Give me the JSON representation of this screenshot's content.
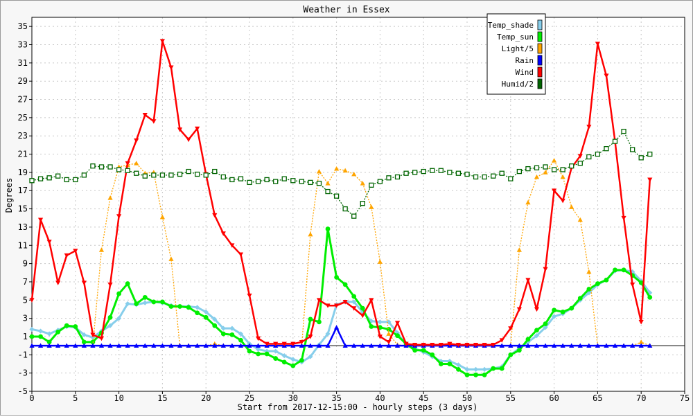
{
  "chart_data": {
    "type": "line",
    "title": "Weather in Essex",
    "xlabel": "Start from 2017-12-15:00 - hourly steps (3 days)",
    "ylabel": "Degrees",
    "xlim": [
      0,
      75
    ],
    "ylim": [
      -5,
      36
    ],
    "x_ticks": [
      "0",
      "5",
      "10",
      "15",
      "20",
      "25",
      "30",
      "35",
      "40",
      "45",
      "50",
      "55",
      "60",
      "65",
      "70",
      "75"
    ],
    "y_ticks": [
      "-5",
      "-3",
      "-1",
      "1",
      "3",
      "5",
      "7",
      "9",
      "11",
      "13",
      "15",
      "17",
      "19",
      "21",
      "23",
      "25",
      "27",
      "29",
      "31",
      "33",
      "35"
    ],
    "grid": true,
    "legend_position": "top-right",
    "x": [
      0,
      1,
      2,
      3,
      4,
      5,
      6,
      7,
      8,
      9,
      10,
      11,
      12,
      13,
      14,
      15,
      16,
      17,
      18,
      19,
      20,
      21,
      22,
      23,
      24,
      25,
      26,
      27,
      28,
      29,
      30,
      31,
      32,
      33,
      34,
      35,
      36,
      37,
      38,
      39,
      40,
      41,
      42,
      43,
      44,
      45,
      46,
      47,
      48,
      49,
      50,
      51,
      52,
      53,
      54,
      55,
      56,
      57,
      58,
      59,
      60,
      61,
      62,
      63,
      64,
      65,
      66,
      67,
      68,
      69,
      70,
      71
    ],
    "series": [
      {
        "name": "Temp_shade",
        "color": "#87ceeb",
        "marker": "diamond",
        "values": [
          1.8,
          1.6,
          1.3,
          1.7,
          2.1,
          2.0,
          1.2,
          0.9,
          1.6,
          2.2,
          3.0,
          4.6,
          4.5,
          4.7,
          4.8,
          4.7,
          4.4,
          4.3,
          4.3,
          4.2,
          3.7,
          2.9,
          1.9,
          1.9,
          1.3,
          0.2,
          -0.4,
          -0.6,
          -0.6,
          -1.1,
          -1.5,
          -1.8,
          -1.2,
          0.1,
          1.3,
          4.5,
          4.8,
          4.8,
          3.7,
          2.7,
          2.6,
          2.6,
          1.4,
          0.1,
          -0.3,
          -0.7,
          -1.2,
          -1.7,
          -1.7,
          -2.1,
          -2.6,
          -2.6,
          -2.6,
          -2.5,
          -2.3,
          -1.0,
          -0.3,
          0.4,
          1.1,
          2.0,
          3.2,
          3.5,
          4.1,
          5.0,
          5.8,
          6.7,
          7.2,
          8.2,
          8.3,
          8.1,
          7.1,
          5.8
        ]
      },
      {
        "name": "Temp_sun",
        "color": "#00ee00",
        "marker": "circle",
        "values": [
          1.0,
          1.0,
          0.4,
          1.5,
          2.2,
          2.1,
          0.4,
          0.4,
          1.4,
          3.1,
          5.7,
          6.8,
          4.6,
          5.3,
          4.8,
          4.8,
          4.3,
          4.3,
          4.2,
          3.6,
          3.1,
          2.2,
          1.3,
          1.2,
          0.6,
          -0.6,
          -0.9,
          -0.9,
          -1.4,
          -1.8,
          -2.2,
          -1.6,
          2.9,
          2.6,
          12.8,
          7.5,
          6.7,
          5.4,
          4.1,
          2.1,
          2.0,
          1.8,
          1.1,
          0.2,
          -0.5,
          -0.5,
          -1.0,
          -2.0,
          -2.0,
          -2.6,
          -3.2,
          -3.2,
          -3.2,
          -2.5,
          -2.5,
          -1.0,
          -0.5,
          0.7,
          1.7,
          2.4,
          3.9,
          3.7,
          4.1,
          5.2,
          6.2,
          6.8,
          7.2,
          8.3,
          8.3,
          7.7,
          6.9,
          5.3
        ]
      },
      {
        "name": "Light/5",
        "color": "#ffa500",
        "marker": "triangle-up",
        "values": [
          0,
          0,
          0,
          0,
          0,
          0,
          0,
          0,
          10.5,
          16.2,
          19.6,
          19.8,
          20.0,
          18.9,
          19.0,
          14.1,
          9.5,
          0,
          0,
          0,
          0,
          0.2,
          0,
          0,
          0,
          0,
          0,
          0,
          0,
          0,
          0,
          0,
          12.2,
          19.1,
          17.8,
          19.4,
          19.2,
          18.8,
          17.8,
          15.2,
          9.2,
          1.3,
          0.1,
          0,
          0,
          0,
          0,
          0,
          0,
          0,
          0,
          0,
          0,
          0,
          0,
          0,
          10.5,
          15.7,
          18.5,
          19.0,
          20.3,
          18.5,
          15.2,
          13.8,
          8.1,
          0,
          0,
          0,
          0,
          0,
          0.4,
          0
        ]
      },
      {
        "name": "Rain",
        "color": "#0000ff",
        "marker": "triangle-up",
        "values": [
          0,
          0,
          0,
          0,
          0,
          0,
          0,
          0,
          0,
          0,
          0,
          0,
          0,
          0,
          0,
          0,
          0,
          0,
          0,
          0,
          0,
          0,
          0,
          0,
          0,
          0,
          0,
          0,
          0,
          0,
          0,
          0,
          0,
          0,
          0,
          2.0,
          0,
          0,
          0,
          0,
          0,
          0,
          0,
          0,
          0,
          0,
          0,
          0,
          0,
          0,
          0,
          0,
          0,
          0,
          0,
          0,
          0,
          0,
          0,
          0,
          0,
          0,
          0,
          0,
          0,
          0,
          0,
          0,
          0,
          0,
          0,
          0
        ]
      },
      {
        "name": "Wind",
        "color": "#ff0000",
        "marker": "triangle-down",
        "values": [
          5.0,
          13.8,
          11.4,
          6.9,
          9.9,
          10.4,
          6.9,
          1.2,
          0.8,
          6.7,
          14.2,
          20.0,
          22.5,
          25.3,
          24.6,
          33.4,
          30.5,
          23.7,
          22.6,
          23.8,
          18.8,
          14.3,
          12.3,
          11.0,
          10.0,
          5.5,
          0.8,
          0.2,
          0.2,
          0.2,
          0.2,
          0.4,
          1.0,
          5.0,
          4.4,
          4.4,
          4.8,
          4.1,
          3.3,
          5.0,
          1.0,
          0.4,
          2.5,
          0.2,
          0.1,
          0.1,
          0.1,
          0.1,
          0.2,
          0.1,
          0.1,
          0.1,
          0.1,
          0.1,
          0.6,
          1.9,
          4.0,
          7.2,
          4.0,
          8.4,
          17.0,
          15.9,
          19.5,
          20.8,
          24.0,
          33.1,
          29.6,
          22.4,
          14.0,
          6.7,
          2.6,
          18.2
        ]
      },
      {
        "name": "Humid/2",
        "color": "#006400",
        "marker": "square",
        "values": [
          18.1,
          18.3,
          18.4,
          18.6,
          18.2,
          18.2,
          18.7,
          19.7,
          19.6,
          19.6,
          19.3,
          19.2,
          18.9,
          18.6,
          18.7,
          18.7,
          18.7,
          18.8,
          19.1,
          18.8,
          18.7,
          19.1,
          18.5,
          18.2,
          18.3,
          17.9,
          18.0,
          18.2,
          18.0,
          18.3,
          18.1,
          18.0,
          17.9,
          17.8,
          16.9,
          16.4,
          15.0,
          14.2,
          15.6,
          17.6,
          18.0,
          18.4,
          18.5,
          18.9,
          19.0,
          19.1,
          19.2,
          19.2,
          19.0,
          18.9,
          18.8,
          18.5,
          18.5,
          18.6,
          18.9,
          18.3,
          19.1,
          19.4,
          19.5,
          19.6,
          19.3,
          19.3,
          19.7,
          20.0,
          20.7,
          21.0,
          21.6,
          22.4,
          23.5,
          21.5,
          20.6,
          21.0
        ]
      }
    ]
  }
}
